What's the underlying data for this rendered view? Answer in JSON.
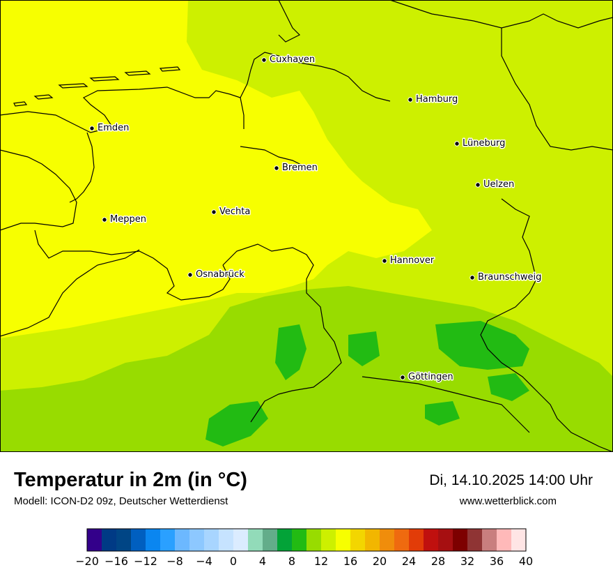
{
  "title": "Temperatur in 2m (in °C)",
  "subtitle": "Modell: ICON-D2 09z, Deutscher Wetterdienst",
  "datetime": "Di, 14.10.2025 14:00 Uhr",
  "website": "www.wetterblick.com",
  "cities": [
    {
      "name": "Cuxhaven"
    },
    {
      "name": "Hamburg"
    },
    {
      "name": "Emden"
    },
    {
      "name": "Lüneburg"
    },
    {
      "name": "Bremen"
    },
    {
      "name": "Uelzen"
    },
    {
      "name": "Vechta"
    },
    {
      "name": "Meppen"
    },
    {
      "name": "Hannover"
    },
    {
      "name": "Osnabrück"
    },
    {
      "name": "Braunschweig"
    },
    {
      "name": "Göttingen"
    }
  ],
  "legend": {
    "min": -20,
    "max": 40,
    "step": 2,
    "tick_labels": [
      "−20",
      "−16",
      "−12",
      "−8",
      "−4",
      "0",
      "4",
      "8",
      "12",
      "16",
      "20",
      "24",
      "28",
      "32",
      "36",
      "40"
    ],
    "colors": [
      "#33008a",
      "#003a85",
      "#004585",
      "#005fc0",
      "#0a86f0",
      "#2aa0ff",
      "#6cb8ff",
      "#8dc8ff",
      "#a8d5ff",
      "#c6e3ff",
      "#dbecff",
      "#92dbb9",
      "#63ad8a",
      "#03a338",
      "#22bb13",
      "#98dc00",
      "#cdf000",
      "#f7ff00",
      "#f3d600",
      "#f2b600",
      "#f08d0b",
      "#ef6a0f",
      "#e23c08",
      "#c0100e",
      "#a60f11",
      "#7d0000",
      "#8f3434",
      "#c97e7e",
      "#ffb9b9",
      "#ffe5e5"
    ]
  },
  "map_colors": {
    "t16": "#f7ff00",
    "t14": "#cdf000",
    "t12": "#98dc00",
    "t10": "#22bb13",
    "border": "#000000"
  }
}
